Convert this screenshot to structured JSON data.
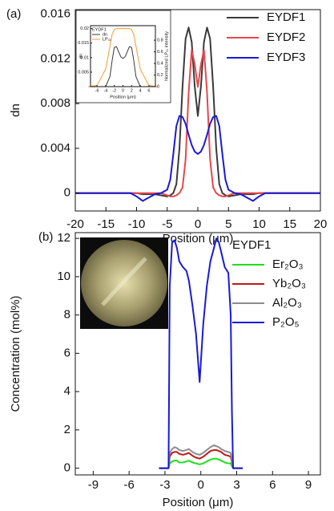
{
  "chart_data": [
    {
      "type": "line",
      "panel_label": "(a)",
      "x_label": "Position (μm)",
      "y_label": "dn",
      "x": [
        -20,
        -15,
        -11,
        -10,
        -9,
        -8,
        -7,
        -6,
        -5,
        -4.5,
        -4,
        -3.5,
        -3,
        -2.5,
        -2,
        -1.5,
        -1,
        -0.5,
        0,
        0.5,
        1,
        1.5,
        2,
        2.5,
        3,
        3.5,
        4,
        4.5,
        5,
        6,
        7,
        8,
        9,
        10,
        11,
        15,
        20
      ],
      "series": [
        {
          "name": "EYDF1",
          "color": "#3a3a3a",
          "values": [
            0,
            0,
            0,
            0,
            -0.0001,
            -0.0001,
            -0.0001,
            -0.0002,
            -0.0003,
            -0.0002,
            0,
            0.0008,
            0.004,
            0.0095,
            0.0138,
            0.0148,
            0.0135,
            0.0095,
            0.0069,
            0.0095,
            0.0135,
            0.0148,
            0.0138,
            0.0095,
            0.004,
            0.0008,
            0,
            -0.0002,
            -0.0003,
            -0.0002,
            -0.0001,
            -0.0001,
            -0.0001,
            0,
            0,
            0,
            0
          ]
        },
        {
          "name": "EYDF2",
          "color": "#e8474b",
          "values": [
            0,
            0,
            0,
            0,
            0,
            0,
            0,
            0,
            -0.0002,
            -0.0003,
            -0.0003,
            -0.0002,
            0,
            0.0005,
            0.003,
            0.009,
            0.0128,
            0.0115,
            0.0095,
            0.0115,
            0.0128,
            0.009,
            0.003,
            0.0005,
            0,
            -0.0002,
            -0.0003,
            -0.0003,
            -0.0002,
            0,
            0,
            0,
            0,
            0,
            0,
            0,
            0
          ]
        },
        {
          "name": "EYDF3",
          "color": "#1a1ad6",
          "values": [
            0,
            0,
            0,
            -0.0003,
            -0.0007,
            -0.0004,
            -0.0001,
            0,
            0.0003,
            0.0012,
            0.0035,
            0.006,
            0.0069,
            0.0068,
            0.0062,
            0.0052,
            0.0043,
            0.0037,
            0.0035,
            0.0037,
            0.0043,
            0.0052,
            0.0062,
            0.0068,
            0.0069,
            0.006,
            0.0035,
            0.0012,
            0.0003,
            0,
            -0.0001,
            -0.0004,
            -0.0007,
            -0.0003,
            0,
            0,
            0
          ]
        }
      ],
      "xlim": [
        -20,
        20
      ],
      "xticks": [
        -20,
        -15,
        -10,
        -5,
        0,
        5,
        10,
        15,
        20
      ],
      "ylim": [
        -0.0016,
        0.0164
      ],
      "yticks": [
        0,
        0.004,
        0.008,
        0.012,
        0.016
      ],
      "legend": "upper right"
    },
    {
      "type": "line",
      "legend_title": "EYDF1",
      "x_label": "Position (μm)",
      "y_label": "dn",
      "y2_label": "Normalized LP₀₁ intensity",
      "x": [
        -8,
        -6,
        -4,
        -3,
        -2.5,
        -2,
        -1.5,
        -1,
        -0.5,
        0,
        0.5,
        1,
        1.5,
        2,
        2.5,
        3,
        4,
        6,
        8
      ],
      "series": [
        {
          "name": "dn",
          "color": "#3a3a3a",
          "values": [
            0,
            0,
            0,
            0.0035,
            0.009,
            0.0135,
            0.0138,
            0.012,
            0.0103,
            0.0097,
            0.0103,
            0.012,
            0.0138,
            0.0135,
            0.009,
            0.0035,
            0,
            0,
            0
          ]
        },
        {
          "name": "LP₀₁",
          "color": "#f39c2c",
          "axis": "y2",
          "values": [
            0,
            0.02,
            0.3,
            0.7,
            0.9,
            0.98,
            1,
            1,
            1,
            1,
            1,
            1,
            1,
            0.98,
            0.9,
            0.7,
            0.3,
            0.02,
            0
          ]
        }
      ],
      "xlim": [
        -7.5,
        7.5
      ],
      "xticks": [
        -6,
        -4,
        -2,
        0,
        2,
        4,
        6
      ],
      "ylim": [
        0,
        0.021
      ],
      "yticks": [
        0.005,
        0.01,
        0.015,
        0.02
      ],
      "y2lim": [
        0,
        1.05
      ],
      "y2ticks": [
        0,
        0.2,
        0.4,
        0.6,
        0.8
      ],
      "legend": "upper left"
    },
    {
      "type": "line",
      "panel_label": "(b)",
      "legend_title": "EYDF1",
      "x_label": "Position (μm)",
      "y_label": "Concentration (mol%)",
      "x": [
        -3.5,
        -2.7,
        -2.6,
        -2.4,
        -2.2,
        -2,
        -1.8,
        -1.5,
        -1.2,
        -1,
        -0.7,
        -0.4,
        -0.1,
        0.2,
        0.5,
        0.8,
        1.1,
        1.3,
        1.5,
        1.7,
        2,
        2.3,
        2.5,
        2.6,
        2.7,
        3.5
      ],
      "series": [
        {
          "name": "Er₂O₃",
          "color": "#22dd22",
          "values": [
            0,
            0,
            0.25,
            0.35,
            0.4,
            0.4,
            0.3,
            0.3,
            0.35,
            0.4,
            0.3,
            0.25,
            0.2,
            0.25,
            0.35,
            0.45,
            0.5,
            0.5,
            0.45,
            0.4,
            0.3,
            0.25,
            0.25,
            0.1,
            0,
            0
          ]
        },
        {
          "name": "Yb₂O₃",
          "color": "#c01818",
          "values": [
            0,
            0,
            0.6,
            0.8,
            0.85,
            0.85,
            0.75,
            0.7,
            0.75,
            0.8,
            0.65,
            0.55,
            0.5,
            0.6,
            0.75,
            0.9,
            0.95,
            0.95,
            0.9,
            0.85,
            0.7,
            0.65,
            0.6,
            0.3,
            0,
            0
          ]
        },
        {
          "name": "Al₂O₃",
          "color": "#8c8c8c",
          "values": [
            0,
            0,
            0.8,
            1.0,
            1.1,
            1.05,
            0.95,
            0.9,
            0.95,
            1.0,
            0.85,
            0.75,
            0.7,
            0.8,
            0.95,
            1.1,
            1.2,
            1.15,
            1.1,
            1.0,
            0.9,
            0.85,
            0.8,
            0.4,
            0,
            0
          ]
        },
        {
          "name": "P₂O₅",
          "color": "#1a1ad6",
          "values": [
            0,
            0,
            9.5,
            11.8,
            11.9,
            11.5,
            10.8,
            10.5,
            10.3,
            9.8,
            8.5,
            7,
            4.5,
            7.5,
            9.5,
            10.8,
            11.5,
            12,
            11.8,
            11.3,
            10.5,
            10.2,
            8,
            3,
            0,
            0
          ]
        }
      ],
      "xlim": [
        -10.5,
        10
      ],
      "xticks": [
        -9,
        -6,
        -3,
        0,
        3,
        6,
        9
      ],
      "ylim": [
        -0.35,
        12.3
      ],
      "yticks": [
        0,
        2,
        4,
        6,
        8,
        10,
        12
      ],
      "legend": "upper right"
    }
  ]
}
